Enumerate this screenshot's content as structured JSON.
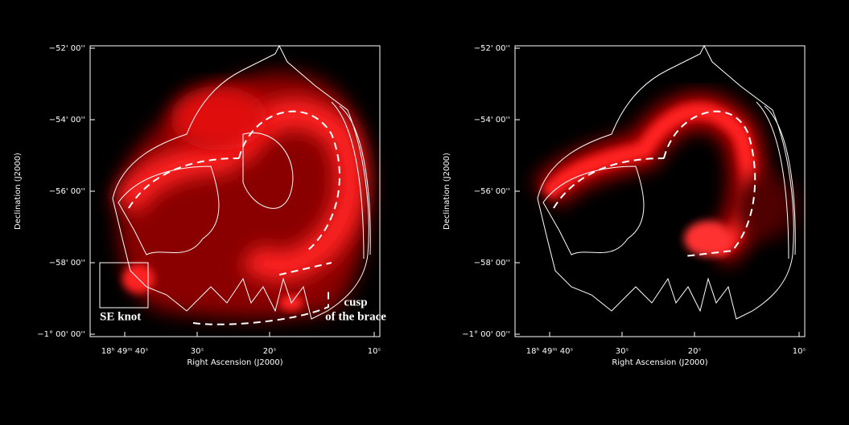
{
  "panels": [
    {
      "y_label": "Declination (J2000)",
      "x_label": "Right Ascension (J2000)",
      "y_ticks": [
        "−52' 00''",
        "−54' 00''",
        "−56' 00''",
        "−58' 00''",
        "−1° 00' 00''"
      ],
      "x_ticks": [
        "18ʰ 49ᵐ 40ˢ",
        "30ˢ",
        "20ˢ",
        "10ˢ"
      ],
      "annotations": [
        "SE knot",
        "cusp",
        "of the brace"
      ]
    },
    {
      "y_label": "Declination (J2000)",
      "x_label": "Right Ascension (J2000)",
      "y_ticks": [
        "−52' 00''",
        "−54' 00''",
        "−56' 00''",
        "−58' 00''",
        "−1° 00' 00''"
      ],
      "x_ticks": [
        "18ʰ 49ᵐ 40ˢ",
        "30ˢ",
        "20ˢ",
        "10ˢ"
      ]
    }
  ]
}
